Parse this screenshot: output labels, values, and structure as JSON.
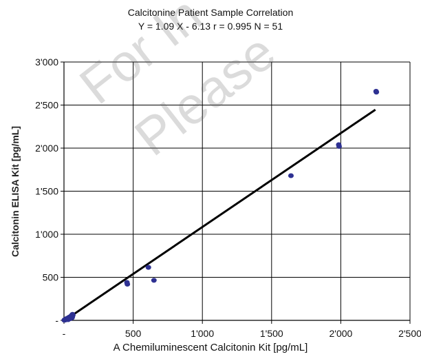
{
  "chart_data": {
    "type": "scatter",
    "title": "Calcitonine Patient Sample Correlation",
    "subtitle": "Y = 1.09 X - 6.13 r = 0.995 N = 51",
    "xlabel": "A Chemiluminescent Calcitonin Kit [pg/mL]",
    "ylabel": "Calcitonin ELISA Kit [pg/mL]",
    "xlim": [
      0,
      2500
    ],
    "ylim": [
      0,
      3000
    ],
    "x_ticks": [
      0,
      500,
      1000,
      1500,
      2000,
      2500
    ],
    "x_tick_labels": [
      "-",
      "500",
      "1'000",
      "1'500",
      "2'000",
      "2'500"
    ],
    "y_ticks": [
      0,
      500,
      1000,
      1500,
      2000,
      2500,
      3000
    ],
    "y_tick_labels": [
      "-",
      "500",
      "1'000",
      "1'500",
      "2'000",
      "2'500",
      "3'000"
    ],
    "grid": true,
    "points": [
      {
        "x": 2,
        "y": 2
      },
      {
        "x": 4,
        "y": 6
      },
      {
        "x": 6,
        "y": 3
      },
      {
        "x": 8,
        "y": 10
      },
      {
        "x": 10,
        "y": 5
      },
      {
        "x": 12,
        "y": 12
      },
      {
        "x": 14,
        "y": 8
      },
      {
        "x": 15,
        "y": 15
      },
      {
        "x": 17,
        "y": 14
      },
      {
        "x": 18,
        "y": 20
      },
      {
        "x": 20,
        "y": 12
      },
      {
        "x": 22,
        "y": 18
      },
      {
        "x": 24,
        "y": 22
      },
      {
        "x": 25,
        "y": 16
      },
      {
        "x": 27,
        "y": 25
      },
      {
        "x": 28,
        "y": 20
      },
      {
        "x": 30,
        "y": 28
      },
      {
        "x": 32,
        "y": 24
      },
      {
        "x": 34,
        "y": 30
      },
      {
        "x": 35,
        "y": 22
      },
      {
        "x": 36,
        "y": 35
      },
      {
        "x": 38,
        "y": 30
      },
      {
        "x": 40,
        "y": 38
      },
      {
        "x": 42,
        "y": 32
      },
      {
        "x": 44,
        "y": 40
      },
      {
        "x": 45,
        "y": 36
      },
      {
        "x": 47,
        "y": 42
      },
      {
        "x": 48,
        "y": 45
      },
      {
        "x": 50,
        "y": 40
      },
      {
        "x": 52,
        "y": 50
      },
      {
        "x": 54,
        "y": 46
      },
      {
        "x": 55,
        "y": 55
      },
      {
        "x": 57,
        "y": 60
      },
      {
        "x": 58,
        "y": 52
      },
      {
        "x": 60,
        "y": 65
      },
      {
        "x": 62,
        "y": 70
      },
      {
        "x": 64,
        "y": 60
      },
      {
        "x": 58,
        "y": 30
      },
      {
        "x": 50,
        "y": 25
      },
      {
        "x": 45,
        "y": 20
      },
      {
        "x": 30,
        "y": 8
      },
      {
        "x": 60,
        "y": 40
      },
      {
        "x": 455,
        "y": 440
      },
      {
        "x": 458,
        "y": 420
      },
      {
        "x": 610,
        "y": 615
      },
      {
        "x": 650,
        "y": 465
      },
      {
        "x": 1640,
        "y": 1680
      },
      {
        "x": 1985,
        "y": 2040
      },
      {
        "x": 1988,
        "y": 2020
      },
      {
        "x": 2255,
        "y": 2660
      },
      {
        "x": 2257,
        "y": 2650
      }
    ],
    "trendline": {
      "x": [
        0,
        2250
      ],
      "slope": 1.09,
      "intercept": -6.13
    },
    "colors": {
      "points": "#2e3192",
      "trendline": "#000000",
      "grid": "#000000",
      "axis": "#000000",
      "watermark": "#5a5a5a"
    }
  },
  "watermark": {
    "line1": "For In",
    "line2": "Please"
  }
}
